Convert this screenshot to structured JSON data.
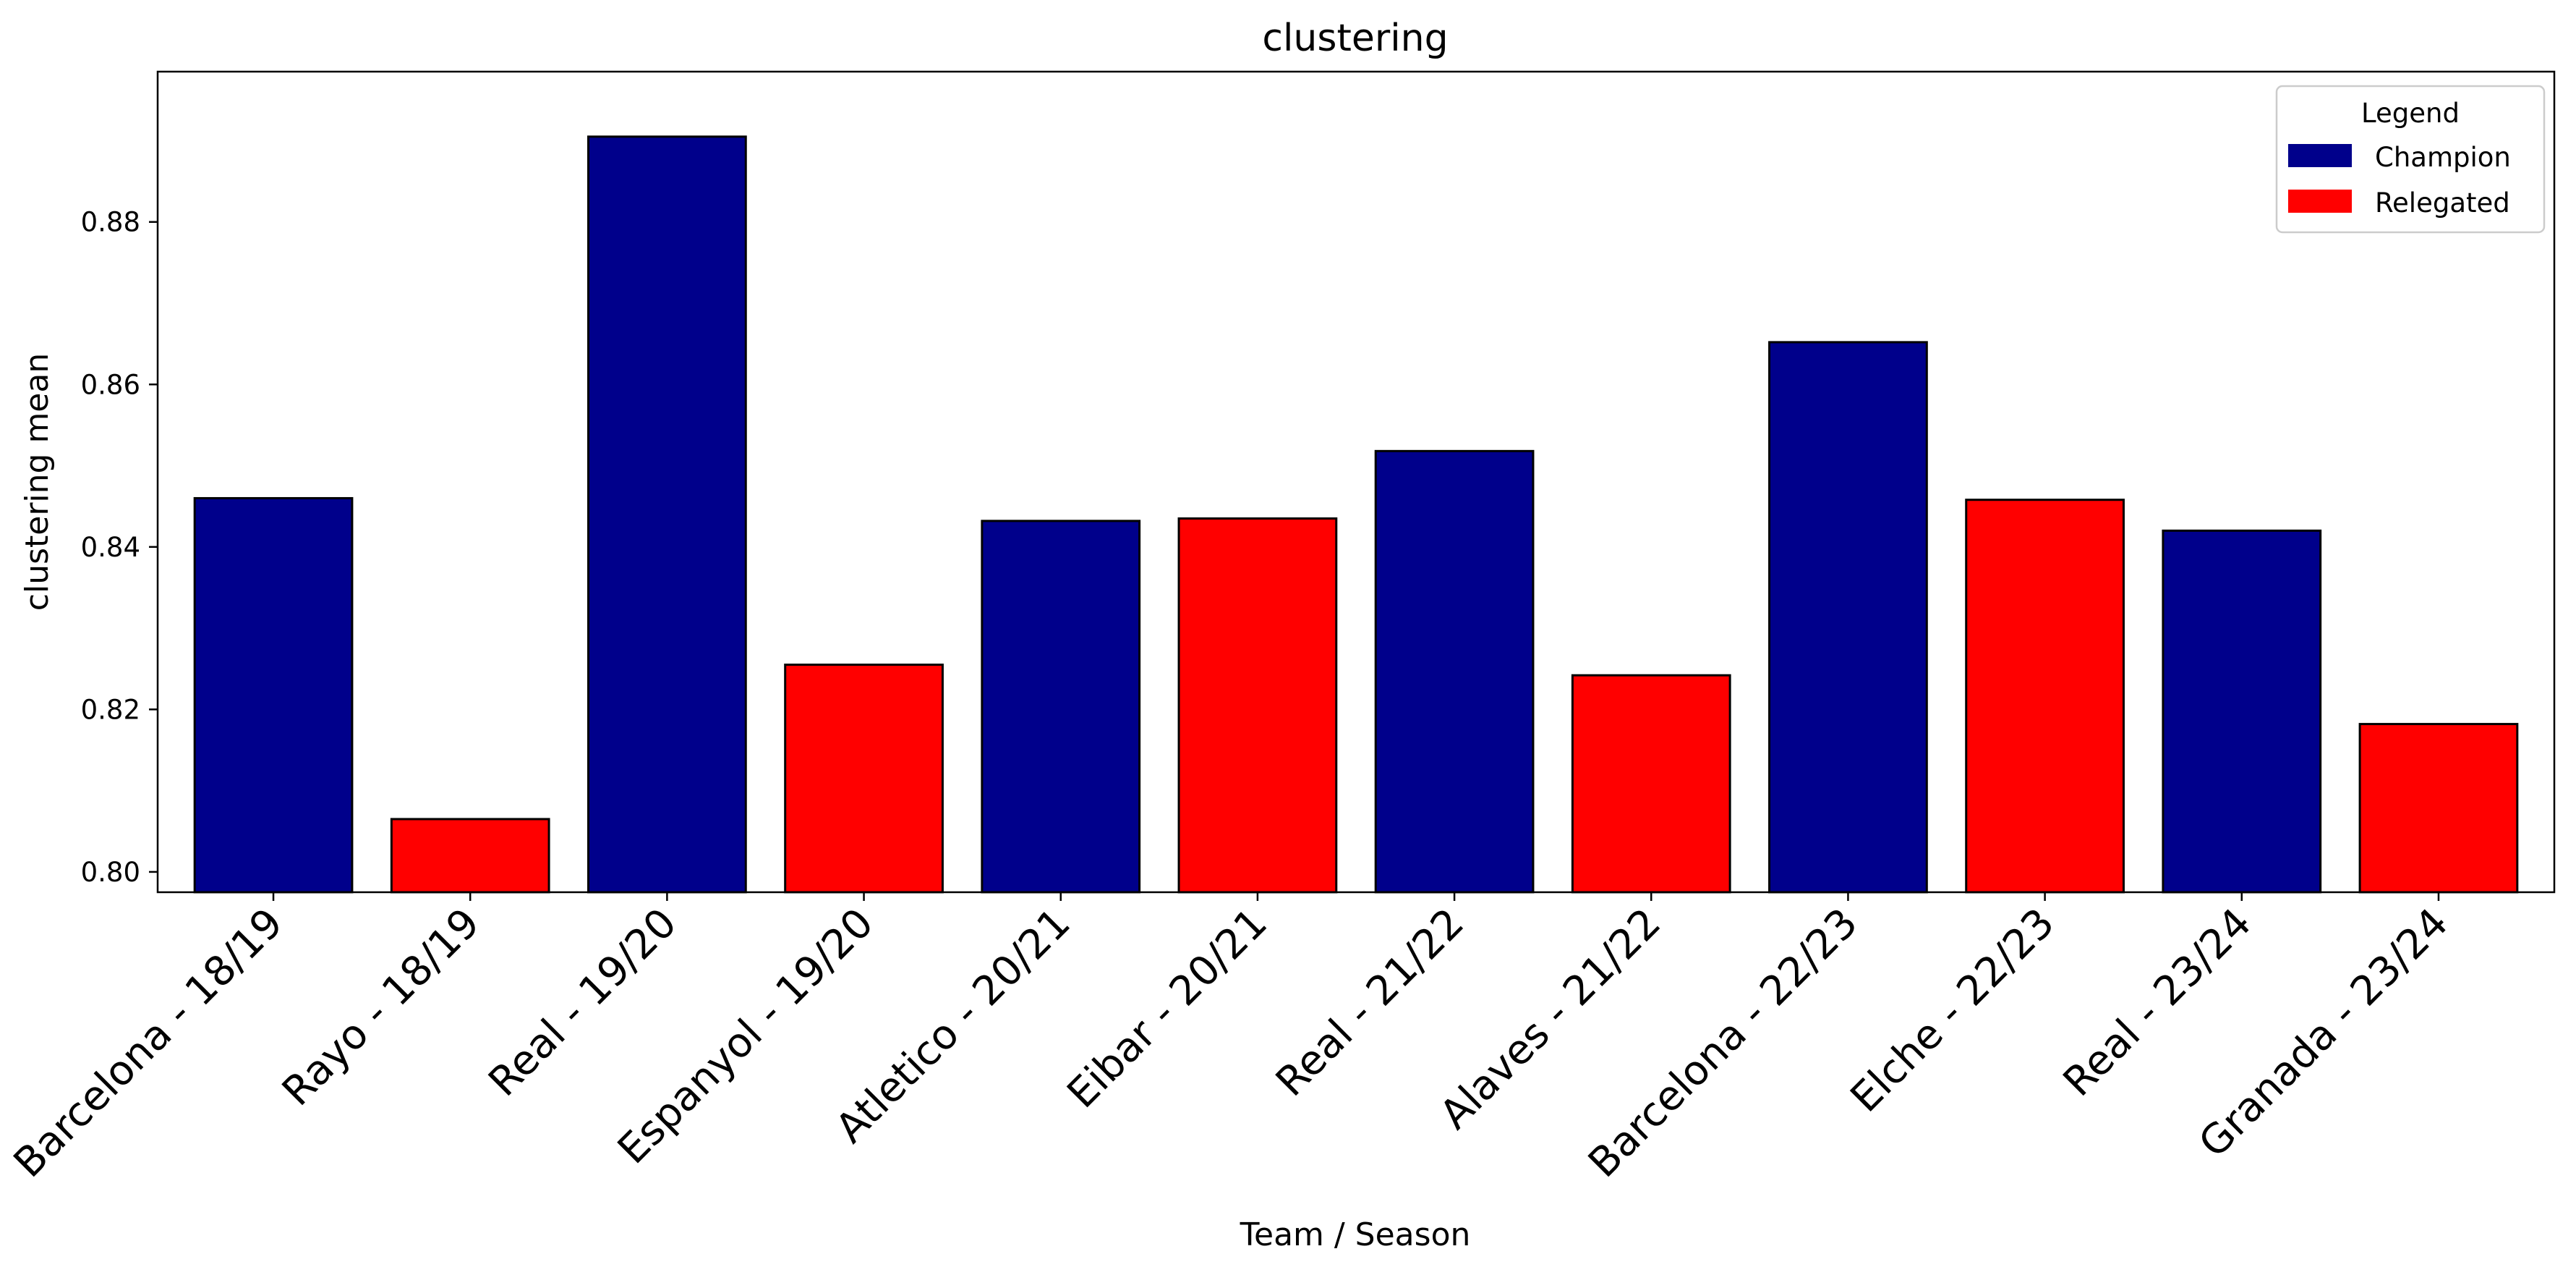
{
  "chart_data": {
    "type": "bar",
    "title": "clustering",
    "xlabel": "Team / Season",
    "ylabel": "clustering mean",
    "ylim": [
      0.7975,
      0.8985
    ],
    "yticks": [
      "0.80",
      "0.82",
      "0.84",
      "0.86",
      "0.88"
    ],
    "grid": false,
    "categories": [
      "Barcelona - 18/19",
      "Rayo - 18/19",
      "Real - 19/20",
      "Espanyol - 19/20",
      "Atletico - 20/21",
      "Eibar - 20/21",
      "Real - 21/22",
      "Alaves - 21/22",
      "Barcelona - 22/23",
      "Elche - 22/23",
      "Real - 23/24",
      "Granada - 23/24"
    ],
    "values": [
      0.846,
      0.8065,
      0.8905,
      0.8255,
      0.8432,
      0.8435,
      0.8518,
      0.8242,
      0.8652,
      0.8458,
      0.842,
      0.8182
    ],
    "groups": [
      "Champion",
      "Relegated",
      "Champion",
      "Relegated",
      "Champion",
      "Relegated",
      "Champion",
      "Relegated",
      "Champion",
      "Relegated",
      "Champion",
      "Relegated"
    ],
    "colors": {
      "Champion": "#00008b",
      "Relegated": "#ff0000",
      "edge": "#000000"
    },
    "legend": {
      "title": "Legend",
      "placement": "top-right",
      "entries": [
        {
          "label": "Champion",
          "color": "#00008b"
        },
        {
          "label": "Relegated",
          "color": "#ff0000"
        }
      ]
    }
  }
}
